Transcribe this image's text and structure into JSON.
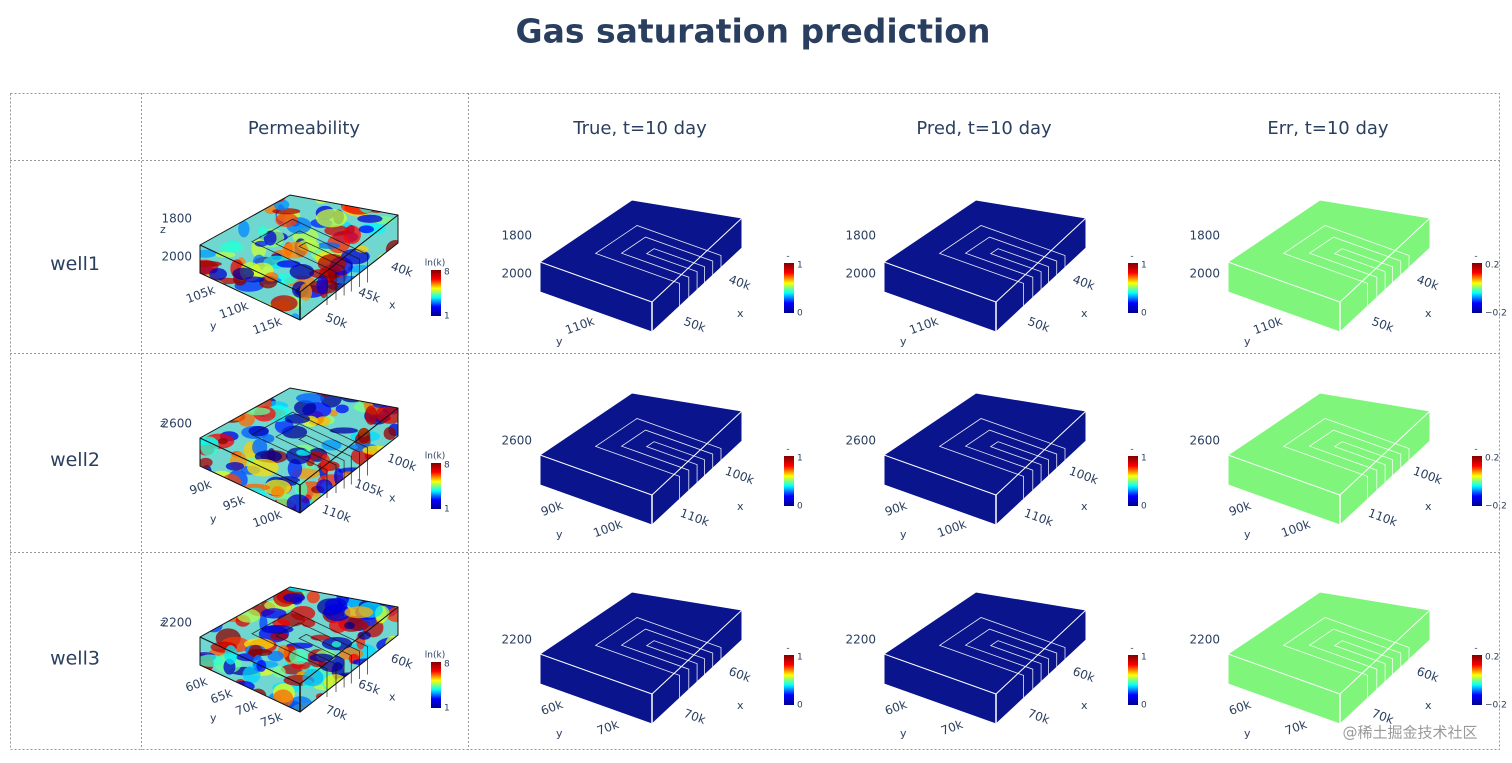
{
  "header": {
    "title": "Gas saturation prediction"
  },
  "table": {
    "columns": [
      "Permeability",
      "True, t=10 day",
      "Pred, t=10 day",
      "Err, t=10 day"
    ],
    "rows": [
      {
        "label": "well1",
        "plots": [
          {
            "z_title": "z",
            "z_ticks": [
              1800,
              2000
            ],
            "y_title": "y",
            "y_ticks": [
              "105k",
              "110k",
              "115k"
            ],
            "x_title": "x",
            "x_ticks": [
              "40k",
              "45k",
              "50k"
            ],
            "fill": "jet",
            "colorbar": {
              "title": "ln(k)",
              "max": 8,
              "min": 1
            }
          },
          {
            "z_ticks": [
              1800,
              2000
            ],
            "y_title": "y",
            "y_ticks": [
              "110k"
            ],
            "x_title": "x",
            "x_ticks": [
              "40k",
              "50k"
            ],
            "fill": "#0a148c",
            "colorbar": {
              "title": "-",
              "max": 1,
              "min": 0
            }
          },
          {
            "z_ticks": [
              1800,
              2000
            ],
            "y_title": "y",
            "y_ticks": [
              "110k"
            ],
            "x_title": "x",
            "x_ticks": [
              "40k",
              "50k"
            ],
            "fill": "#0a148c",
            "colorbar": {
              "title": "-",
              "max": 1,
              "min": 0
            }
          },
          {
            "z_ticks": [
              1800,
              2000
            ],
            "y_title": "y",
            "y_ticks": [
              "110k"
            ],
            "x_title": "x",
            "x_ticks": [
              "40k",
              "50k"
            ],
            "fill": "#80f57c",
            "colorbar": {
              "title": "-",
              "max": 0.2,
              "min": "−0.2"
            }
          }
        ]
      },
      {
        "label": "well2",
        "plots": [
          {
            "z_title": "z",
            "z_ticks": [
              2600
            ],
            "y_title": "y",
            "y_ticks": [
              "90k",
              "95k",
              "100k"
            ],
            "x_title": "x",
            "x_ticks": [
              "100k",
              "105k",
              "110k"
            ],
            "fill": "jet",
            "colorbar": {
              "title": "ln(k)",
              "max": 8,
              "min": 1
            }
          },
          {
            "z_ticks": [
              2600
            ],
            "y_title": "y",
            "y_ticks": [
              "90k",
              "100k"
            ],
            "x_title": "x",
            "x_ticks": [
              "100k",
              "110k"
            ],
            "fill": "#0a148c",
            "colorbar": {
              "title": "-",
              "max": 1,
              "min": 0
            }
          },
          {
            "z_ticks": [
              2600
            ],
            "y_title": "y",
            "y_ticks": [
              "90k",
              "100k"
            ],
            "x_title": "x",
            "x_ticks": [
              "100k",
              "110k"
            ],
            "fill": "#0a148c",
            "colorbar": {
              "title": "-",
              "max": 1,
              "min": 0
            }
          },
          {
            "z_ticks": [
              2600
            ],
            "y_title": "y",
            "y_ticks": [
              "90k",
              "100k"
            ],
            "x_title": "x",
            "x_ticks": [
              "100k",
              "110k"
            ],
            "fill": "#80f57c",
            "colorbar": {
              "title": "-",
              "max": 0.2,
              "min": "−0.2"
            }
          }
        ]
      },
      {
        "label": "well3",
        "plots": [
          {
            "z_title": "z",
            "z_ticks": [
              2200
            ],
            "y_title": "y",
            "y_ticks": [
              "60k",
              "65k",
              "70k",
              "75k"
            ],
            "x_title": "x",
            "x_ticks": [
              "60k",
              "65k",
              "70k"
            ],
            "fill": "jet",
            "colorbar": {
              "title": "ln(k)",
              "max": 8,
              "min": 1
            }
          },
          {
            "z_ticks": [
              2200
            ],
            "y_title": "y",
            "y_ticks": [
              "60k",
              "70k"
            ],
            "x_title": "x",
            "x_ticks": [
              "60k",
              "70k"
            ],
            "fill": "#0a148c",
            "colorbar": {
              "title": "-",
              "max": 1,
              "min": 0
            }
          },
          {
            "z_ticks": [
              2200
            ],
            "y_title": "y",
            "y_ticks": [
              "60k",
              "70k"
            ],
            "x_title": "x",
            "x_ticks": [
              "60k",
              "70k"
            ],
            "fill": "#0a148c",
            "colorbar": {
              "title": "-",
              "max": 1,
              "min": 0
            }
          },
          {
            "z_ticks": [
              2200
            ],
            "y_title": "y",
            "y_ticks": [
              "60k",
              "70k"
            ],
            "x_title": "x",
            "x_ticks": [
              "60k",
              "70k"
            ],
            "fill": "#80f57c",
            "colorbar": {
              "title": "-",
              "max": 0.2,
              "min": "−0.2"
            }
          }
        ]
      }
    ]
  },
  "watermark": "@稀土掘金技术社区"
}
